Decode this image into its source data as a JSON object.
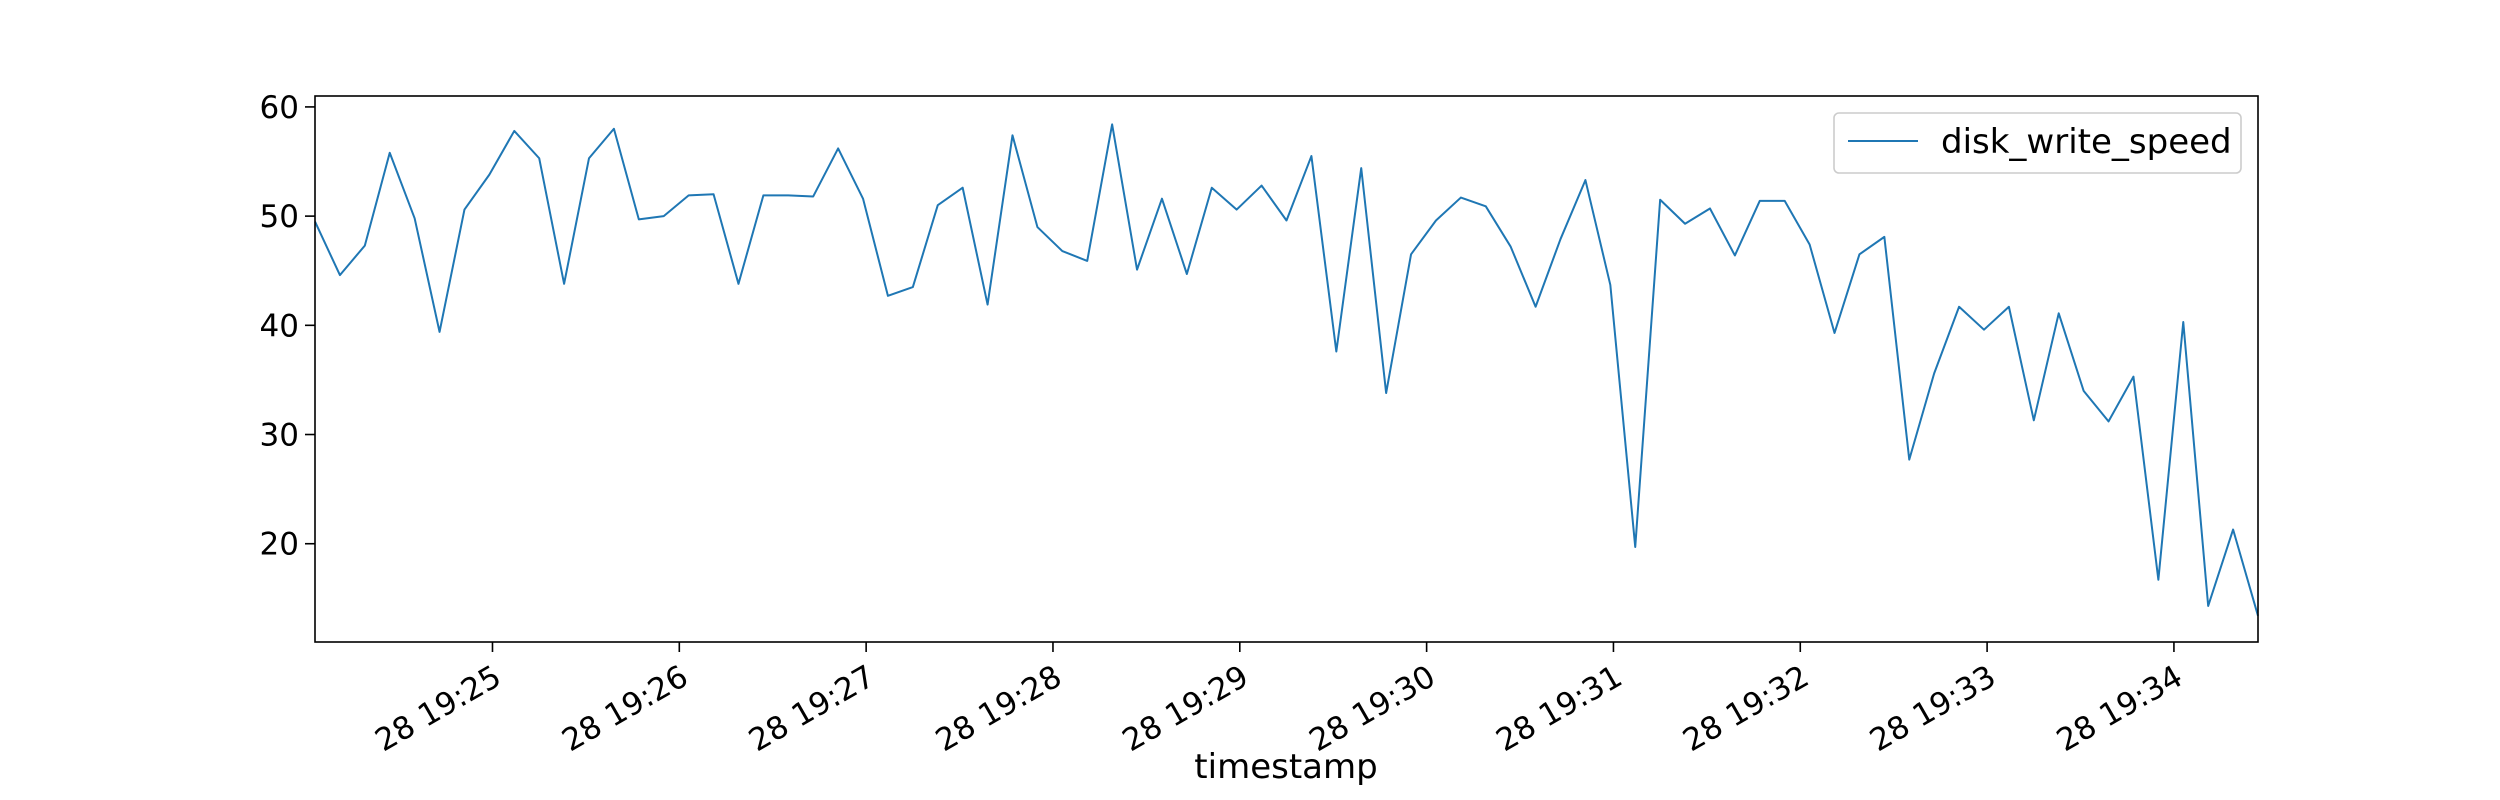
{
  "chart_data": {
    "type": "line",
    "title": "",
    "xlabel": "timestamp",
    "ylabel": "",
    "grid": false,
    "legend_position": "top-right",
    "x_tick_labels": [
      "28 19:25",
      "28 19:26",
      "28 19:27",
      "28 19:28",
      "28 19:29",
      "28 19:30",
      "28 19:31",
      "28 19:32",
      "28 19:33",
      "28 19:34"
    ],
    "x_tick_times": [
      "19:25",
      "19:26",
      "19:27",
      "19:28",
      "19:29",
      "19:30",
      "19:31",
      "19:32",
      "19:33",
      "19:34"
    ],
    "x_start": "19:24:03",
    "x_step_seconds": 8,
    "xlim": [
      "19:24:03",
      "19:34:27"
    ],
    "ylim": [
      11,
      61
    ],
    "y_ticks": [
      20,
      30,
      40,
      50,
      60
    ],
    "series": [
      {
        "name": "disk_write_speed",
        "color": "#1f77b4",
        "values": [
          49.5,
          44.6,
          47.3,
          55.8,
          49.8,
          39.4,
          50.6,
          53.8,
          57.8,
          55.3,
          43.8,
          55.3,
          58.0,
          49.7,
          50.0,
          51.9,
          52.0,
          43.8,
          51.9,
          51.9,
          51.8,
          56.2,
          51.6,
          42.7,
          43.5,
          51.0,
          52.6,
          41.9,
          57.4,
          49.0,
          46.8,
          45.9,
          58.4,
          45.1,
          51.6,
          44.7,
          52.6,
          50.6,
          52.8,
          49.6,
          55.5,
          37.6,
          54.4,
          33.8,
          46.5,
          49.6,
          51.7,
          50.9,
          47.2,
          41.7,
          47.9,
          53.3,
          43.7,
          19.7,
          51.5,
          49.3,
          50.7,
          46.4,
          51.4,
          51.4,
          47.4,
          39.3,
          46.5,
          48.1,
          27.7,
          35.6,
          41.7,
          39.6,
          41.7,
          31.3,
          41.1,
          34.0,
          31.2,
          35.3,
          16.7,
          40.3,
          14.3,
          21.3,
          13.4
        ]
      }
    ]
  }
}
